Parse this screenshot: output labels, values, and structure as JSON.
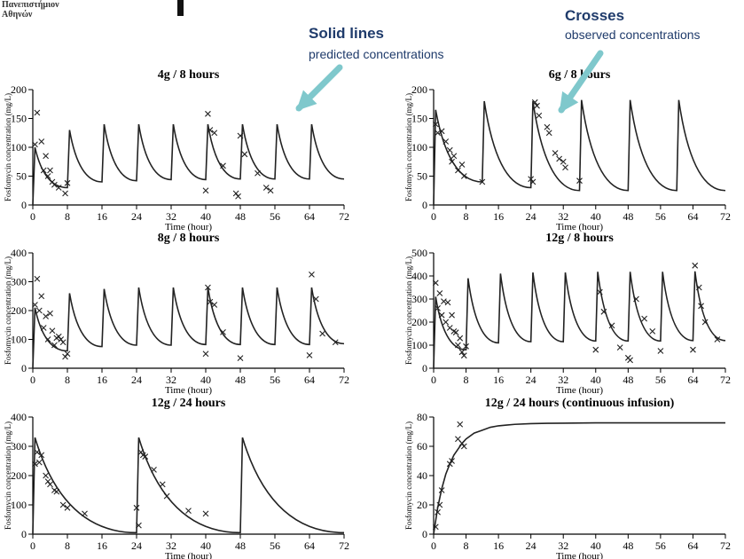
{
  "header": {
    "university_line1": "Πανεπιστήμιον",
    "university_line2": "Αθηνών"
  },
  "annotations": {
    "solid_title": "Solid lines",
    "solid_sub": "predicted concentrations",
    "crosses_title": "Crosses",
    "crosses_sub": "observed concentrations",
    "arrow_color": "#7fc8cc"
  },
  "colors": {
    "line": "#222222",
    "marker": "#222222",
    "text": "#1f3b6b"
  },
  "chart_data": [
    {
      "type": "line",
      "title": "4g / 8 hours",
      "xlabel": "Time (hour)",
      "ylabel": "Fosfomycin concentration (mg/L)",
      "xlim": [
        0,
        72
      ],
      "ylim": [
        0,
        200
      ],
      "xticks": [
        0,
        8,
        16,
        24,
        32,
        40,
        48,
        56,
        64,
        72
      ],
      "yticks": [
        0,
        50,
        100,
        150,
        200
      ],
      "series": [
        {
          "kind": "predicted",
          "x": [
            0,
            0.5,
            8,
            8.5,
            16,
            16.5,
            24,
            24.5,
            32,
            32.5,
            40,
            40.5,
            48,
            48.5,
            56,
            56.5,
            64,
            64.5,
            72
          ],
          "y": [
            0,
            100,
            30,
            130,
            40,
            140,
            42,
            140,
            44,
            140,
            44,
            140,
            45,
            140,
            45,
            140,
            45,
            140,
            45
          ]
        },
        {
          "kind": "observed",
          "x": [
            0.5,
            1,
            2,
            2.5,
            3,
            3.5,
            4,
            4.5,
            5,
            6,
            7.5,
            8,
            40,
            40.5,
            41,
            42,
            44,
            47,
            47.5,
            48,
            49,
            52,
            54,
            55
          ],
          "y": [
            105,
            160,
            110,
            60,
            85,
            50,
            60,
            40,
            35,
            30,
            20,
            38,
            25,
            158,
            130,
            125,
            68,
            20,
            15,
            120,
            88,
            55,
            30,
            25
          ]
        }
      ]
    },
    {
      "type": "line",
      "title": "6g / 8 hours",
      "xlabel": "Time (hour)",
      "ylabel": "Fosfomycin concentration (mg/L)",
      "xlim": [
        0,
        72
      ],
      "ylim": [
        0,
        200
      ],
      "xticks": [
        0,
        8,
        16,
        24,
        32,
        40,
        48,
        56,
        64,
        72
      ],
      "yticks": [
        0,
        50,
        100,
        150,
        200
      ],
      "series": [
        {
          "kind": "predicted",
          "x": [
            0,
            0.5,
            12,
            12.5,
            24,
            24.5,
            36,
            36.5,
            48,
            48.5,
            60,
            60.5,
            72
          ],
          "y": [
            0,
            165,
            40,
            180,
            30,
            180,
            25,
            182,
            25,
            182,
            25,
            182,
            25
          ]
        },
        {
          "kind": "observed",
          "x": [
            0.5,
            1,
            2,
            3,
            4,
            4.5,
            5,
            6,
            7,
            7.5,
            12,
            24,
            24.5,
            25,
            25.5,
            26,
            28,
            28.5,
            30,
            31,
            32,
            32.5,
            36
          ],
          "y": [
            140,
            125,
            128,
            110,
            95,
            75,
            85,
            60,
            70,
            50,
            40,
            45,
            40,
            178,
            172,
            155,
            135,
            125,
            90,
            80,
            75,
            65,
            42
          ]
        }
      ]
    },
    {
      "type": "line",
      "title": "8g / 8 hours",
      "xlabel": "Time (hour)",
      "ylabel": "Fosfomycin concentration (mg/L)",
      "xlim": [
        0,
        72
      ],
      "ylim": [
        0,
        400
      ],
      "xticks": [
        0,
        8,
        16,
        24,
        32,
        40,
        48,
        56,
        64,
        72
      ],
      "yticks": [
        0,
        100,
        200,
        300,
        400
      ],
      "series": [
        {
          "kind": "predicted",
          "x": [
            0,
            0.5,
            8,
            8.5,
            16,
            16.5,
            24,
            24.5,
            32,
            32.5,
            40,
            40.5,
            48,
            48.5,
            56,
            56.5,
            64,
            64.5,
            72
          ],
          "y": [
            0,
            210,
            60,
            260,
            75,
            275,
            80,
            280,
            80,
            280,
            82,
            280,
            82,
            280,
            82,
            280,
            82,
            280,
            85
          ]
        },
        {
          "kind": "observed",
          "x": [
            0.5,
            1,
            1.5,
            2,
            2.5,
            3,
            3.5,
            4,
            4.5,
            5,
            5.5,
            6,
            6.5,
            7,
            7.5,
            8,
            40,
            40.5,
            41,
            42,
            44,
            48,
            64,
            64.5,
            65.5,
            67,
            70
          ],
          "y": [
            220,
            310,
            200,
            250,
            140,
            180,
            100,
            190,
            130,
            80,
            105,
            110,
            100,
            90,
            40,
            50,
            50,
            280,
            230,
            220,
            125,
            35,
            45,
            325,
            240,
            120,
            90
          ]
        }
      ]
    },
    {
      "type": "line",
      "title": "12g / 8 hours",
      "xlabel": "Time (hour)",
      "ylabel": "Fosfomycin concentration (mg/L)",
      "xlim": [
        0,
        72
      ],
      "ylim": [
        0,
        500
      ],
      "xticks": [
        0,
        8,
        16,
        24,
        32,
        40,
        48,
        56,
        64,
        72
      ],
      "yticks": [
        0,
        100,
        200,
        300,
        400,
        500
      ],
      "series": [
        {
          "kind": "predicted",
          "x": [
            0,
            0.5,
            8,
            8.5,
            16,
            16.5,
            24,
            24.5,
            32,
            32.5,
            40,
            40.5,
            48,
            48.5,
            56,
            56.5,
            64,
            64.5,
            72
          ],
          "y": [
            0,
            310,
            80,
            390,
            110,
            410,
            115,
            415,
            115,
            415,
            118,
            418,
            118,
            418,
            118,
            418,
            120,
            420,
            120
          ]
        },
        {
          "kind": "observed",
          "x": [
            0.5,
            1,
            1.5,
            2,
            2.5,
            3,
            3.5,
            4,
            4.5,
            5,
            5.5,
            6,
            6.5,
            7,
            7.5,
            8,
            40,
            41,
            42,
            44,
            46,
            48,
            48.5,
            50,
            52,
            54,
            56,
            64,
            64.5,
            65.5,
            66,
            67,
            70
          ],
          "y": [
            370,
            260,
            325,
            230,
            290,
            200,
            285,
            175,
            230,
            160,
            155,
            100,
            130,
            70,
            55,
            95,
            80,
            330,
            245,
            185,
            90,
            45,
            35,
            300,
            215,
            160,
            75,
            80,
            445,
            350,
            270,
            200,
            125
          ]
        }
      ]
    },
    {
      "type": "line",
      "title": "12g / 24 hours",
      "xlabel": "Time (hour)",
      "ylabel": "Fosfomycin concentration (mg/L)",
      "xlim": [
        0,
        72
      ],
      "ylim": [
        0,
        400
      ],
      "xticks": [
        0,
        8,
        16,
        24,
        32,
        40,
        48,
        56,
        64,
        72
      ],
      "yticks": [
        0,
        100,
        200,
        300,
        400
      ],
      "series": [
        {
          "kind": "predicted",
          "x": [
            0,
            0.5,
            24,
            24.5,
            48,
            48.5,
            72
          ],
          "y": [
            0,
            330,
            5,
            330,
            5,
            330,
            5
          ]
        },
        {
          "kind": "observed",
          "x": [
            0.5,
            1,
            1.5,
            2,
            3,
            3.5,
            4,
            5,
            5.5,
            7,
            8,
            12,
            24,
            24.5,
            25,
            25.5,
            26,
            28,
            30,
            31,
            36,
            40
          ],
          "y": [
            240,
            280,
            245,
            270,
            200,
            180,
            170,
            150,
            145,
            100,
            90,
            70,
            90,
            30,
            280,
            270,
            265,
            220,
            170,
            130,
            80,
            70
          ]
        }
      ]
    },
    {
      "type": "line",
      "title": "12g / 24 hours (continuous infusion)",
      "xlabel": "Time (hour)",
      "ylabel": "Fosfomycin concentration (mg/L)",
      "xlim": [
        0,
        72
      ],
      "ylim": [
        0,
        80
      ],
      "xticks": [
        0,
        8,
        16,
        24,
        32,
        40,
        48,
        56,
        64,
        72
      ],
      "yticks": [
        0,
        20,
        40,
        60,
        80
      ],
      "series": [
        {
          "kind": "predicted",
          "x": [
            0,
            1,
            2,
            3,
            4,
            5,
            6,
            7,
            8,
            10,
            12,
            14,
            16,
            18,
            20,
            24,
            28,
            32,
            40,
            48,
            56,
            64,
            72
          ],
          "y": [
            0,
            18,
            31,
            41,
            48,
            54,
            58,
            62,
            65,
            69,
            71,
            73,
            74,
            74.5,
            75,
            75.5,
            75.7,
            75.8,
            76,
            76,
            76,
            76,
            76
          ]
        },
        {
          "kind": "observed",
          "x": [
            0.5,
            1,
            1.5,
            2,
            4,
            4.5,
            6,
            6.5,
            7,
            7.5
          ],
          "y": [
            5,
            15,
            20,
            30,
            48,
            50,
            65,
            75,
            62,
            60
          ]
        }
      ]
    }
  ]
}
